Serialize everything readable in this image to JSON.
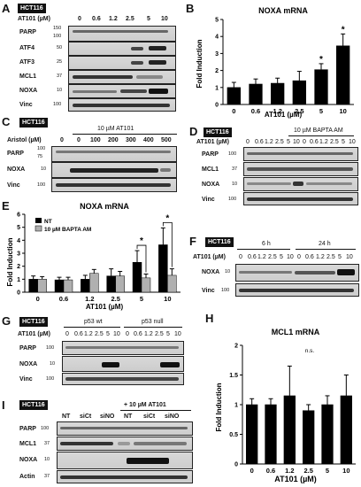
{
  "panels": {
    "A": {
      "letter": "A",
      "cell_line": "HCT116",
      "treatment_label": "AT101 (µM)",
      "lanes": [
        "0",
        "0.6",
        "1.2",
        "2.5",
        "5",
        "10"
      ],
      "markers": [
        "150",
        "100",
        "50",
        "25",
        "37",
        "10",
        "100"
      ],
      "rows": [
        "PARP",
        "ATF4",
        "ATF3",
        "MCL1",
        "NOXA",
        "Vinc"
      ]
    },
    "B": {
      "letter": "B"
    },
    "C": {
      "letter": "C",
      "cell_line": "HCT116",
      "treatment_label": "Aristol (µM)",
      "header": "10 µM AT101",
      "lanes": [
        "0",
        "0",
        "100",
        "200",
        "300",
        "400",
        "500"
      ],
      "markers": [
        "100",
        "75",
        "10",
        "100"
      ],
      "rows": [
        "PARP",
        "NOXA",
        "Vinc"
      ]
    },
    "D": {
      "letter": "D",
      "cell_line": "HCT116",
      "treatment_label": "AT101 (µM)",
      "header": "10 µM BAPTA AM",
      "lanes": [
        "0",
        "0.6",
        "1.2",
        "2.5",
        "5",
        "10",
        "0",
        "0.6",
        "1.2",
        "2.5",
        "5",
        "10"
      ],
      "markers": [
        "100",
        "37",
        "10",
        "100"
      ],
      "rows": [
        "PARP",
        "MCL1",
        "NOXA",
        "Vinc"
      ]
    },
    "E": {
      "letter": "E"
    },
    "F": {
      "letter": "F",
      "cell_line": "HCT116",
      "treatment_label": "AT101 (µM)",
      "time_labels": [
        "6 h",
        "24 h"
      ],
      "lanes": [
        "0",
        "0.6",
        "1.2",
        "2.5",
        "5",
        "10",
        "0",
        "0.6",
        "1.2",
        "2.5",
        "5",
        "10"
      ],
      "markers": [
        "10",
        "100"
      ],
      "rows": [
        "NOXA",
        "Vinc"
      ]
    },
    "G": {
      "letter": "G",
      "cell_line": "HCT116",
      "treatment_label": "AT101 (µM)",
      "group_labels": [
        "p53 wt",
        "p53 null"
      ],
      "lanes": [
        "0",
        "0.6",
        "1.2",
        "2.5",
        "5",
        "10",
        "0",
        "0.6",
        "1.2",
        "2.5",
        "5",
        "10"
      ],
      "markers": [
        "100",
        "10",
        "100"
      ],
      "rows": [
        "PARP",
        "NOXA",
        "Vinc"
      ]
    },
    "H": {
      "letter": "H"
    },
    "I": {
      "letter": "I",
      "cell_line": "HCT116",
      "header": "+ 10 µM AT101",
      "lanes": [
        "NT",
        "siCt",
        "siNO",
        "NT",
        "siCt",
        "siNO"
      ],
      "markers": [
        "100",
        "37",
        "10",
        "37"
      ],
      "rows": [
        "PARP",
        "MCL1",
        "NOXA",
        "Actin"
      ]
    }
  },
  "chart_data": [
    {
      "id": "B",
      "type": "bar",
      "title": "NOXA mRNA",
      "xlabel": "AT101 (µM)",
      "ylabel": "Fold Induction",
      "categories": [
        "0",
        "0.6",
        "1.2",
        "2.5",
        "5",
        "10"
      ],
      "values": [
        1.0,
        1.2,
        1.25,
        1.4,
        2.05,
        3.45
      ],
      "errors": [
        0.3,
        0.3,
        0.3,
        0.55,
        0.35,
        0.7
      ],
      "significance": [
        "",
        "",
        "",
        "",
        "*",
        "*"
      ],
      "ylim": [
        0,
        5
      ],
      "yticks": [
        0,
        1,
        2,
        3,
        4,
        5
      ],
      "color": "#000000"
    },
    {
      "id": "E",
      "type": "bar",
      "title": "NOXA mRNA",
      "xlabel": "AT101 (µM)",
      "ylabel": "Fold Induction",
      "categories": [
        "0",
        "0.6",
        "1.2",
        "2.5",
        "5",
        "10"
      ],
      "series": [
        {
          "name": "NT",
          "values": [
            1.0,
            0.95,
            1.0,
            1.25,
            2.3,
            3.65
          ],
          "errors": [
            0.25,
            0.2,
            0.3,
            0.55,
            0.9,
            1.3
          ],
          "color": "#000000"
        },
        {
          "name": "10 µM BAPTA AM",
          "values": [
            1.0,
            0.95,
            1.45,
            1.25,
            1.1,
            1.3
          ],
          "errors": [
            0.2,
            0.2,
            0.3,
            0.35,
            0.3,
            0.5
          ],
          "color": "#b0b0b0"
        }
      ],
      "significance": [
        "",
        "",
        "",
        "",
        "*",
        "*"
      ],
      "ylim": [
        0,
        6
      ],
      "yticks": [
        0,
        1,
        2,
        3,
        4,
        5,
        6
      ],
      "legend": "top-left"
    },
    {
      "id": "H",
      "type": "bar",
      "title": "MCL1 mRNA",
      "xlabel": "AT101 (µM)",
      "ylabel": "Fold Induction",
      "categories": [
        "0",
        "0.6",
        "1.2",
        "2.5",
        "5",
        "10"
      ],
      "values": [
        1.0,
        1.0,
        1.15,
        0.9,
        1.0,
        1.15
      ],
      "errors": [
        0.1,
        0.1,
        0.5,
        0.1,
        0.15,
        0.35
      ],
      "annotation": "n.s.",
      "ylim": [
        0,
        2.0
      ],
      "yticks": [
        0,
        0.5,
        1.0,
        1.5,
        2.0
      ],
      "color": "#000000"
    }
  ]
}
